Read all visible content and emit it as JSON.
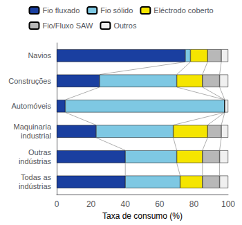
{
  "chart_data": {
    "type": "bar",
    "orientation": "horizontal",
    "stacked": true,
    "categories": [
      "Todas as\nindústrias",
      "Outras\nindústrias",
      "Maquinaria\nindustrial",
      "Automóveis",
      "Construções",
      "Navios"
    ],
    "series": [
      {
        "name": "Fio fluxado",
        "color": "#1a3fa0",
        "values": [
          40,
          40,
          23,
          5,
          25,
          75
        ]
      },
      {
        "name": "Fio sólido",
        "color": "#7ec8e3",
        "values": [
          32,
          30,
          45,
          93,
          45,
          3
        ]
      },
      {
        "name": "Eléctrodo coberto",
        "color": "#f5e500",
        "values": [
          13,
          15,
          20,
          0,
          15,
          10
        ]
      },
      {
        "name": "Fio/Fluxo SAW",
        "color": "#b8b8b8",
        "values": [
          10,
          10,
          8,
          0,
          10,
          8
        ]
      },
      {
        "name": "Outros",
        "color": "#f0f0f0",
        "values": [
          5,
          5,
          4,
          2,
          5,
          4
        ]
      }
    ],
    "xlabel": "Taxa de consumo (%)",
    "xlim": [
      0,
      100
    ],
    "xticks": [
      0,
      20,
      40,
      60,
      80,
      100
    ],
    "grid": false,
    "legend": "top"
  }
}
